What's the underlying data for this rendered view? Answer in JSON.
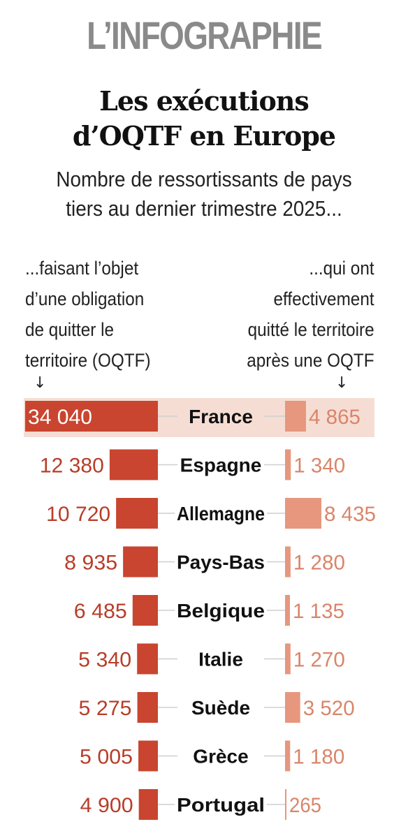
{
  "header": {
    "kicker": "L’INFOGRAPHIE",
    "title_lines": [
      "Les exécutions",
      "d’OQTF en Europe"
    ],
    "subtitle_lines": [
      "Nombre de ressortissants de pays",
      "tiers au dernier trimestre 2025..."
    ]
  },
  "columns": {
    "left_lines": [
      "...faisant l’objet",
      "d’une obligation",
      "de quitter le",
      "territoire (OQTF)"
    ],
    "right_lines": [
      "...qui ont",
      "effectivement",
      "quitté le territoire",
      "après une OQTF"
    ],
    "arrow": "↓"
  },
  "colors": {
    "left_bar": "#c9452f",
    "right_bar": "#e6977d",
    "left_text": "#b83d28",
    "right_text": "#d9856a",
    "highlight": "#f6ddd4",
    "connector": "#cfcfcf"
  },
  "chart_data": {
    "type": "bar",
    "categories": [
      "France",
      "Espagne",
      "Allemagne",
      "Pays-Bas",
      "Belgique",
      "Italie",
      "Suède",
      "Grèce",
      "Portugal"
    ],
    "series": [
      {
        "values": [
          34040,
          12380,
          10720,
          8935,
          6485,
          5340,
          5275,
          5005,
          4900
        ],
        "labels": [
          "34 040",
          "12 380",
          "10 720",
          "8 935",
          "6 485",
          "5 340",
          "5 275",
          "5 005",
          "4 900"
        ]
      },
      {
        "values": [
          4865,
          1340,
          8435,
          1280,
          1135,
          1270,
          3520,
          1180,
          265
        ],
        "labels": [
          "4 865",
          "1 340",
          "8 435",
          "1 280",
          "1 135",
          "1 270",
          "3 520",
          "1 180",
          "265"
        ]
      }
    ],
    "highlight": "France",
    "grid": false,
    "legend": "none"
  }
}
